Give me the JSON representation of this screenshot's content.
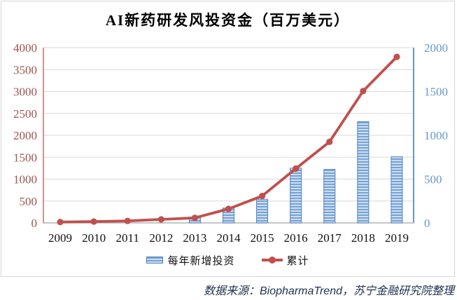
{
  "chart_data": {
    "type": "bar",
    "subtype": "bar-line-combo",
    "title": "AI新药研发风投资金（百万美元）",
    "categories": [
      "2009",
      "2010",
      "2011",
      "2012",
      "2013",
      "2014",
      "2015",
      "2016",
      "2017",
      "2018",
      "2019"
    ],
    "series": [
      {
        "name": "每年新增投资",
        "type": "bar",
        "axis": "right",
        "color": "#4f81bd",
        "fill_style": "horizontal-stripes",
        "values": [
          0,
          0,
          0,
          0,
          65,
          170,
          270,
          625,
          610,
          1155,
          755
        ]
      },
      {
        "name": "累计",
        "type": "line",
        "axis": "left",
        "color": "#c0504d",
        "marker": "circle",
        "values": [
          20,
          30,
          45,
          80,
          115,
          320,
          615,
          1240,
          1850,
          3010,
          3790
        ]
      }
    ],
    "left_axis": {
      "min": 0,
      "max": 4000,
      "step": 500,
      "ticks": [
        "4000",
        "3500",
        "3000",
        "2500",
        "2000",
        "1500",
        "1000",
        "500",
        "0"
      ],
      "color": "#a0524e"
    },
    "right_axis": {
      "min": 0,
      "max": 2000,
      "step": 500,
      "ticks": [
        "2000",
        "1500",
        "1000",
        "500",
        "0"
      ],
      "color": "#6298d2"
    },
    "x_axis": {
      "label_color": "#111111"
    },
    "grid": true,
    "gridline_color": "#d9d9d9",
    "x_axis_line_color": "#b3b3b3",
    "legend_position": "bottom"
  },
  "source_note": "数据来源：BiopharmaTrend，苏宁金融研究院整理"
}
